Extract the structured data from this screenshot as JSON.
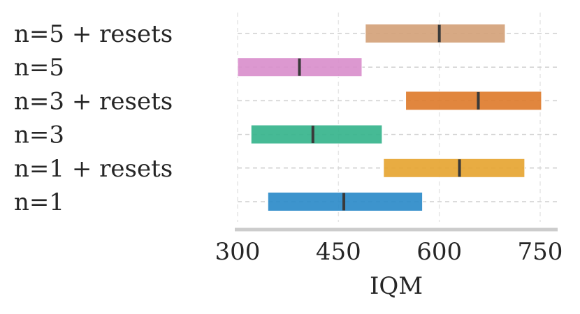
{
  "chart_data": {
    "type": "bar",
    "orientation": "horizontal-interval",
    "title": "",
    "xlabel": "IQM",
    "ylabel": "",
    "xlim": [
      300,
      750
    ],
    "xticks": [
      "300",
      "450",
      "600",
      "750"
    ],
    "grid": true,
    "categories": [
      "n=5 + resets",
      "n=5",
      "n=3 + resets",
      "n=3",
      "n=1 + resets",
      "n=1"
    ],
    "intervals": [
      {
        "category": "n=5 + resets",
        "low": 490,
        "high": 698,
        "point": 600,
        "color": "#d4a27a"
      },
      {
        "category": "n=5",
        "low": 300,
        "high": 485,
        "point": 392,
        "color": "#d98fcc"
      },
      {
        "category": "n=3 + resets",
        "low": 550,
        "high": 752,
        "point": 658,
        "color": "#de7c2e"
      },
      {
        "category": "n=3",
        "low": 320,
        "high": 515,
        "point": 412,
        "color": "#36b48c"
      },
      {
        "category": "n=1 + resets",
        "low": 517,
        "high": 727,
        "point": 630,
        "color": "#e6a532"
      },
      {
        "category": "n=1",
        "low": 345,
        "high": 575,
        "point": 458,
        "color": "#2d8bc9"
      }
    ]
  }
}
